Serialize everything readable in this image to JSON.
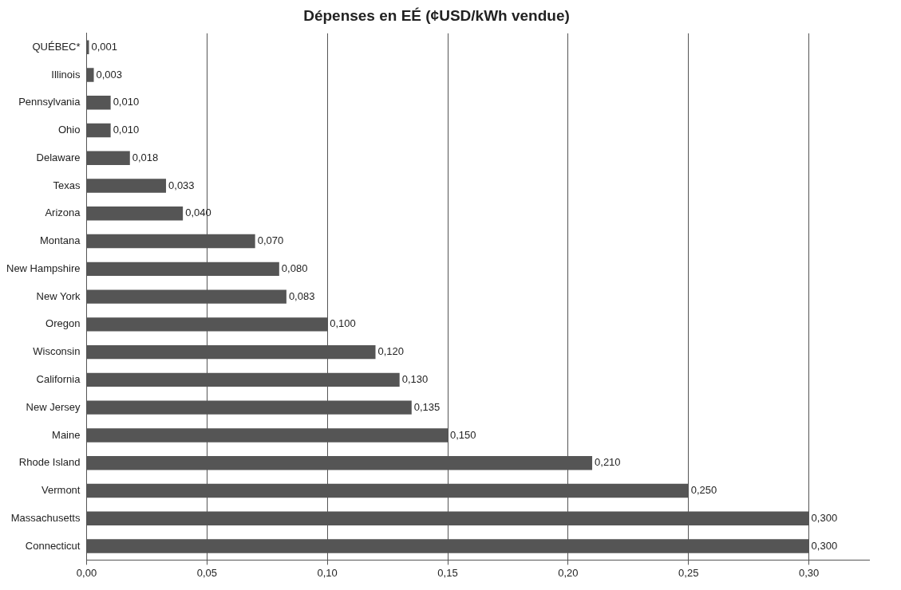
{
  "chart_data": {
    "type": "bar",
    "orientation": "horizontal",
    "title": "Dépenses en EÉ (¢USD/kWh vendue)",
    "categories": [
      "QUÉBEC*",
      "Illinois",
      "Pennsylvania",
      "Ohio",
      "Delaware",
      "Texas",
      "Arizona",
      "Montana",
      "New Hampshire",
      "New York",
      "Oregon",
      "Wisconsin",
      "California",
      "New Jersey",
      "Maine",
      "Rhode Island",
      "Vermont",
      "Massachusetts",
      "Connecticut"
    ],
    "values": [
      0.001,
      0.003,
      0.01,
      0.01,
      0.018,
      0.033,
      0.04,
      0.07,
      0.08,
      0.083,
      0.1,
      0.12,
      0.13,
      0.135,
      0.15,
      0.21,
      0.25,
      0.3,
      0.3
    ],
    "value_labels": [
      "0,001",
      "0,003",
      "0,010",
      "0,010",
      "0,018",
      "0,033",
      "0,040",
      "0,070",
      "0,080",
      "0,083",
      "0,100",
      "0,120",
      "0,130",
      "0,135",
      "0,150",
      "0,210",
      "0,250",
      "0,300",
      "0,300"
    ],
    "color": "#555555",
    "xlim": [
      0,
      0.325
    ],
    "xticks": [
      {
        "value": 0,
        "label": "0,00"
      },
      {
        "value": 0.05,
        "label": "0,05"
      },
      {
        "value": 0.1,
        "label": "0,10"
      },
      {
        "value": 0.15,
        "label": "0,15"
      },
      {
        "value": 0.2,
        "label": "0,20"
      },
      {
        "value": 0.25,
        "label": "0,25"
      },
      {
        "value": 0.3,
        "label": "0,30"
      }
    ],
    "grid": "x"
  }
}
